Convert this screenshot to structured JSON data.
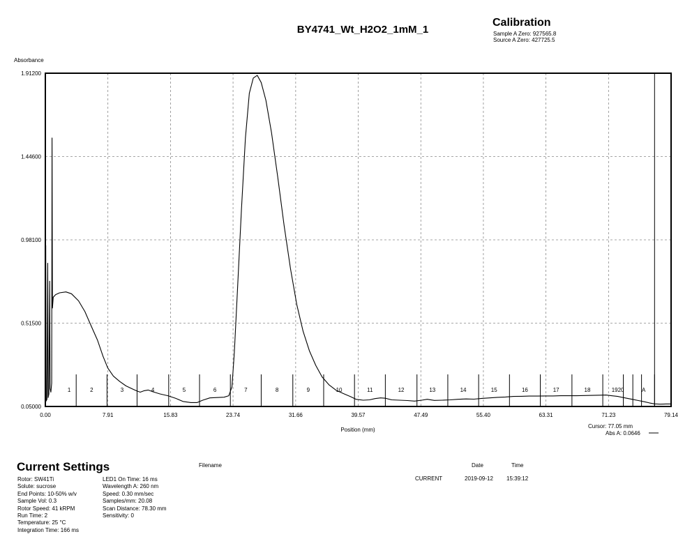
{
  "title": "BY4741_Wt_H2O2_1mM_1",
  "calibration": {
    "heading": "Calibration",
    "sample_zero": "Sample A Zero: 927565.8",
    "source_zero": "Source A Zero: 427725.5"
  },
  "chart_data": {
    "type": "line",
    "ylabel": "Absorbance",
    "xlabel": "Position (mm)",
    "xlim": [
      0.0,
      79.14
    ],
    "ylim": [
      0.05,
      1.912
    ],
    "x_ticks": [
      "0.00",
      "7.91",
      "15.83",
      "23.74",
      "31.66",
      "39.57",
      "47.49",
      "55.40",
      "63.31",
      "71.23",
      "79.14"
    ],
    "y_ticks": [
      "0.05000",
      "0.51500",
      "0.98100",
      "1.44600",
      "1.91200"
    ],
    "x_tick_values": [
      0.0,
      7.91,
      15.83,
      23.74,
      31.66,
      39.57,
      47.49,
      55.4,
      63.31,
      71.23,
      79.14
    ],
    "y_tick_values": [
      0.05,
      0.515,
      0.981,
      1.446,
      1.912
    ],
    "grid": true,
    "fractions": [
      {
        "label": "1",
        "boundary": 3.9
      },
      {
        "label": "2",
        "boundary": 7.8
      },
      {
        "label": "3",
        "boundary": 11.6
      },
      {
        "label": "4",
        "boundary": 15.6
      },
      {
        "label": "5",
        "boundary": 19.5
      },
      {
        "label": "6",
        "boundary": 23.4
      },
      {
        "label": "7",
        "boundary": 27.3
      },
      {
        "label": "8",
        "boundary": 31.3
      },
      {
        "label": "9",
        "boundary": 35.2
      },
      {
        "label": "10",
        "boundary": 39.1
      },
      {
        "label": "11",
        "boundary": 43.0
      },
      {
        "label": "12",
        "boundary": 47.0
      },
      {
        "label": "13",
        "boundary": 50.9
      },
      {
        "label": "14",
        "boundary": 54.8
      },
      {
        "label": "15",
        "boundary": 58.7
      },
      {
        "label": "16",
        "boundary": 62.6
      },
      {
        "label": "17",
        "boundary": 66.6
      },
      {
        "label": "18",
        "boundary": 70.5
      },
      {
        "label": "1920",
        "boundary": 74.3
      },
      {
        "label": "A",
        "boundary": 77.05
      }
    ],
    "fraction_extra_ticks": [
      73.1,
      75.4
    ],
    "series": [
      {
        "color": "#000000",
        "points": [
          [
            0.0,
            0.07
          ],
          [
            0.05,
            0.95
          ],
          [
            0.1,
            0.08
          ],
          [
            0.2,
            0.09
          ],
          [
            0.3,
            0.85
          ],
          [
            0.35,
            0.1
          ],
          [
            0.45,
            0.12
          ],
          [
            0.55,
            0.75
          ],
          [
            0.6,
            0.15
          ],
          [
            0.7,
            0.13
          ],
          [
            0.8,
            0.18
          ],
          [
            0.85,
            1.55
          ],
          [
            0.9,
            0.6
          ],
          [
            1.0,
            0.66
          ],
          [
            1.3,
            0.675
          ],
          [
            1.8,
            0.685
          ],
          [
            2.6,
            0.69
          ],
          [
            3.3,
            0.68
          ],
          [
            4.2,
            0.64
          ],
          [
            5.0,
            0.58
          ],
          [
            5.8,
            0.5
          ],
          [
            6.6,
            0.42
          ],
          [
            7.3,
            0.33
          ],
          [
            7.9,
            0.265
          ],
          [
            8.6,
            0.22
          ],
          [
            9.4,
            0.19
          ],
          [
            10.2,
            0.165
          ],
          [
            10.9,
            0.15
          ],
          [
            11.5,
            0.138
          ],
          [
            12.0,
            0.13
          ],
          [
            12.5,
            0.138
          ],
          [
            13.0,
            0.142
          ],
          [
            13.6,
            0.132
          ],
          [
            14.5,
            0.12
          ],
          [
            15.5,
            0.11
          ],
          [
            16.5,
            0.095
          ],
          [
            17.4,
            0.078
          ],
          [
            18.4,
            0.072
          ],
          [
            19.2,
            0.072
          ],
          [
            19.9,
            0.085
          ],
          [
            20.8,
            0.098
          ],
          [
            21.7,
            0.1
          ],
          [
            22.6,
            0.102
          ],
          [
            23.2,
            0.11
          ],
          [
            23.6,
            0.16
          ],
          [
            23.9,
            0.35
          ],
          [
            24.3,
            0.7
          ],
          [
            24.8,
            1.15
          ],
          [
            25.3,
            1.55
          ],
          [
            25.8,
            1.8
          ],
          [
            26.3,
            1.885
          ],
          [
            26.8,
            1.9
          ],
          [
            27.3,
            1.86
          ],
          [
            27.9,
            1.76
          ],
          [
            28.6,
            1.58
          ],
          [
            29.4,
            1.33
          ],
          [
            30.2,
            1.06
          ],
          [
            31.0,
            0.82
          ],
          [
            31.8,
            0.62
          ],
          [
            32.6,
            0.47
          ],
          [
            33.4,
            0.36
          ],
          [
            34.2,
            0.28
          ],
          [
            35.0,
            0.215
          ],
          [
            35.9,
            0.17
          ],
          [
            36.8,
            0.14
          ],
          [
            37.8,
            0.12
          ],
          [
            38.6,
            0.105
          ],
          [
            39.3,
            0.09
          ],
          [
            40.2,
            0.085
          ],
          [
            41.0,
            0.087
          ],
          [
            41.7,
            0.094
          ],
          [
            42.4,
            0.098
          ],
          [
            43.0,
            0.096
          ],
          [
            43.8,
            0.087
          ],
          [
            44.8,
            0.085
          ],
          [
            45.8,
            0.083
          ],
          [
            46.7,
            0.08
          ],
          [
            47.6,
            0.085
          ],
          [
            48.3,
            0.09
          ],
          [
            49.2,
            0.084
          ],
          [
            50.2,
            0.085
          ],
          [
            51.2,
            0.087
          ],
          [
            52.2,
            0.09
          ],
          [
            53.2,
            0.092
          ],
          [
            54.2,
            0.091
          ],
          [
            55.2,
            0.095
          ],
          [
            56.2,
            0.098
          ],
          [
            57.2,
            0.101
          ],
          [
            58.2,
            0.103
          ],
          [
            59.2,
            0.106
          ],
          [
            60.2,
            0.107
          ],
          [
            61.2,
            0.108
          ],
          [
            62.2,
            0.108
          ],
          [
            63.2,
            0.109
          ],
          [
            64.2,
            0.109
          ],
          [
            65.2,
            0.11
          ],
          [
            66.2,
            0.11
          ],
          [
            67.2,
            0.11
          ],
          [
            68.2,
            0.111
          ],
          [
            69.2,
            0.112
          ],
          [
            70.2,
            0.113
          ],
          [
            70.9,
            0.114
          ],
          [
            71.6,
            0.11
          ],
          [
            72.4,
            0.106
          ],
          [
            73.3,
            0.098
          ],
          [
            74.2,
            0.09
          ],
          [
            75.0,
            0.083
          ],
          [
            75.8,
            0.076
          ],
          [
            76.4,
            0.07
          ],
          [
            77.05,
            0.0646
          ],
          [
            77.8,
            0.063
          ],
          [
            78.5,
            0.064
          ],
          [
            79.14,
            0.064
          ]
        ]
      }
    ]
  },
  "cursor": {
    "position_text": "Cursor: 77.05 mm",
    "abs_text": "Abs A: 0.0646",
    "x": 77.05
  },
  "settings": {
    "heading": "Current Settings",
    "col1": [
      "Rotor: SW41Ti",
      "Solute: sucrose",
      "End Points: 10-50% w/v",
      "Sample Vol: 0.3",
      "Rotor Speed: 41 kRPM",
      "Run Time: 2",
      "Temperature: 25 °C",
      "Integration Time: 166 ms"
    ],
    "col2": [
      "LED1 On Time: 16 ms",
      "Wavelength A: 260 nm",
      "Speed: 0.30 mm/sec",
      "Samples/mm: 20.08",
      "Scan Distance: 78.30 mm",
      "Sensitivity: 0"
    ]
  },
  "file_info": {
    "filename_header": "Filename",
    "date_header": "Date",
    "time_header": "Time",
    "filename": "CURRENT",
    "date": "2019-09-12",
    "time": "15:39:12"
  }
}
